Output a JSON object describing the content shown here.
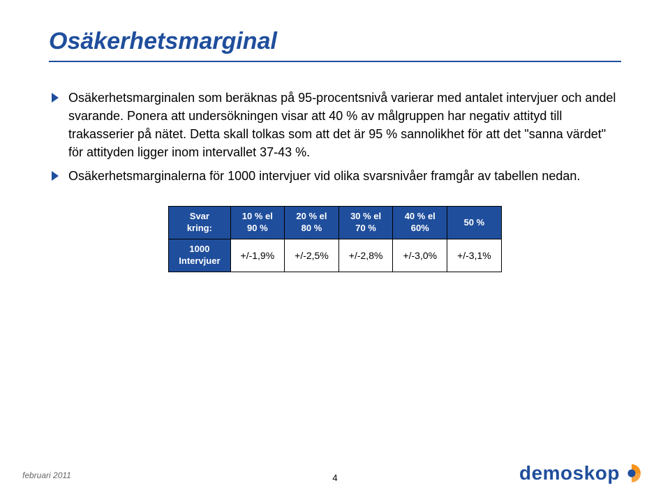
{
  "title": "Osäkerhetsmarginal",
  "title_color": "#1f4e9c",
  "bullets": [
    "Osäkerhetsmarginalen som beräknas på 95-procentsnivå varierar med antalet intervjuer och andel svarande. Ponera att undersökningen visar att 40 % av målgruppen har negativ attityd till trakasserier på nätet. Detta skall tolkas som att det är 95 % sannolikhet för att det \"sanna värdet\" för attityden ligger inom intervallet 37-43 %.",
    "Osäkerhetsmarginalerna för 1000 intervjuer vid olika svarsnivåer framgår av tabellen nedan."
  ],
  "table": {
    "header_bg": "#1f4e9c",
    "header_fg": "#ffffff",
    "cell_bg": "#ffffff",
    "cell_fg": "#000000",
    "border_color": "#000000",
    "columns": [
      "Svar\nkring:",
      "10 % el\n90 %",
      "20 % el\n80 %",
      "30 % el\n70 %",
      "40 % el\n60%",
      "50 %"
    ],
    "rows": [
      {
        "label": "1000\nIntervjuer",
        "cells": [
          "+/-1,9%",
          "+/-2,5%",
          "+/-2,8%",
          "+/-3,0%",
          "+/-3,1%"
        ]
      }
    ]
  },
  "footer": {
    "date": "februari 2011",
    "page": "4"
  },
  "logo": {
    "text": "demoskop",
    "text_color": "#1f4e9c",
    "mark_colors": {
      "outer": "#f7941d",
      "inner": "#1f4e9c"
    }
  }
}
